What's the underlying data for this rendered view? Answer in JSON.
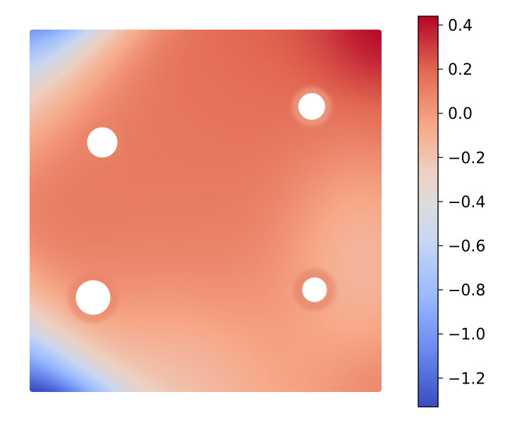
{
  "chart_data": {
    "type": "heatmap",
    "title": "",
    "xlabel": "",
    "ylabel": "",
    "colormap": "coolwarm",
    "colorbar": {
      "vmin": -1.33,
      "vmax": 0.44,
      "ticks": [
        0.4,
        0.2,
        0.0,
        -0.2,
        -0.4,
        -0.6,
        -0.8,
        -1.0,
        -1.2
      ],
      "tick_labels": [
        "0.4",
        "0.2",
        "0.0",
        "−0.2",
        "−0.4",
        "−0.6",
        "−0.8",
        "−1.0",
        "−1.2"
      ]
    },
    "domain": "square plate with four circular holes",
    "field_samples": [
      {
        "region": "top-left corner",
        "value": -1.0
      },
      {
        "region": "top-right corner",
        "value": 0.42
      },
      {
        "region": "bottom-left corner",
        "value": -1.3
      },
      {
        "region": "bottom-right corner",
        "value": 0.1
      },
      {
        "region": "left-center",
        "value": 0.15
      },
      {
        "region": "center",
        "value": 0.05
      },
      {
        "region": "right-center",
        "value": -0.2
      },
      {
        "region": "bottom-center",
        "value": -0.2
      }
    ],
    "holes": [
      {
        "name": "upper-left",
        "radius_rel": 0.042
      },
      {
        "name": "upper-right",
        "radius_rel": 0.038
      },
      {
        "name": "lower-left",
        "radius_rel": 0.048
      },
      {
        "name": "lower-right",
        "radius_rel": 0.035
      }
    ]
  },
  "colors": {
    "coolwarm": [
      "#3b4cc0",
      "#6889ee",
      "#9abbff",
      "#c9d7f0",
      "#edd1c2",
      "#f7a889",
      "#e26952",
      "#b40426"
    ]
  }
}
